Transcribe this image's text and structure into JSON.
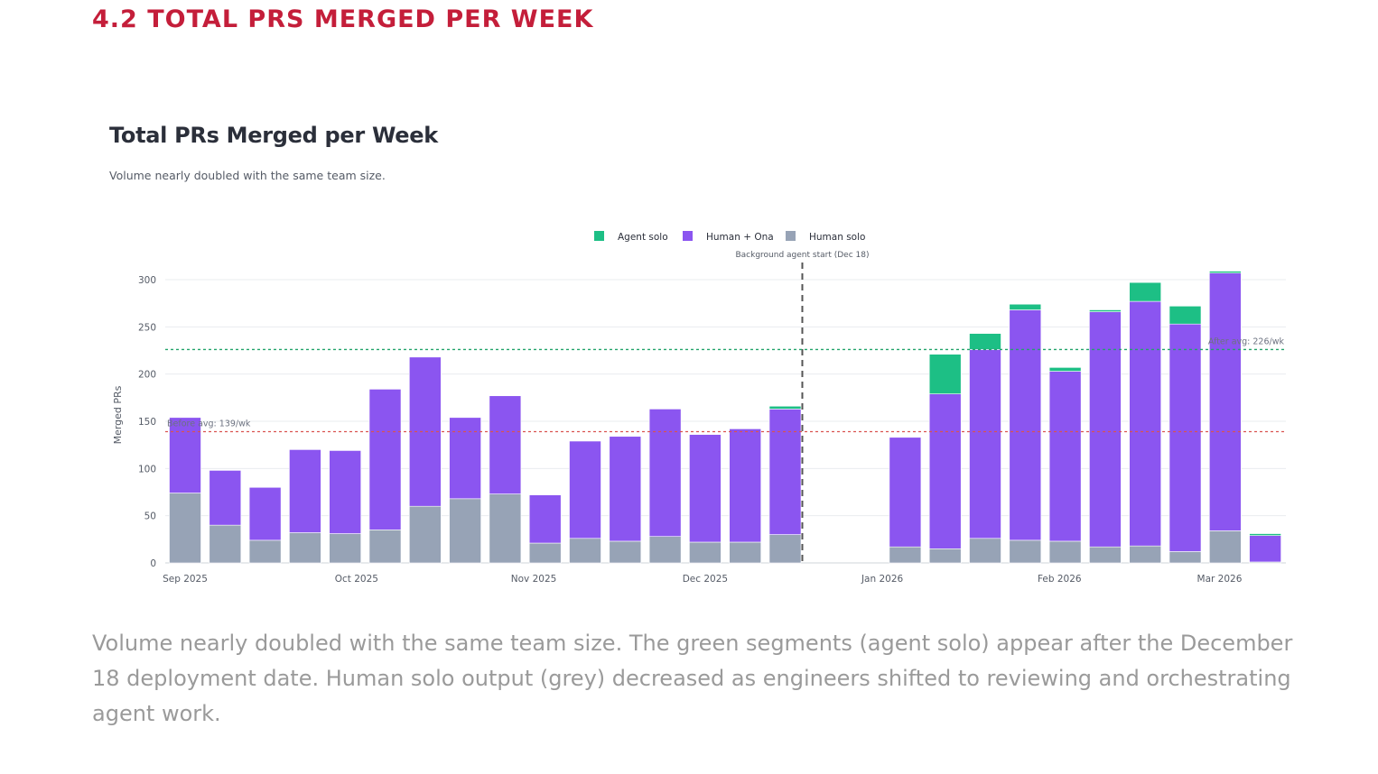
{
  "section": {
    "heading": "4.2 TOTAL PRS MERGED PER WEEK"
  },
  "caption": "Volume nearly doubled with the same team size. The green segments (agent solo) appear after the December 18 deployment date. Human solo output (grey) decreased as engineers shifted to reviewing and orchestrating agent work.",
  "colors": {
    "agent_solo": "#1dbf85",
    "human_ona": "#8b55f0",
    "human_solo": "#97a3b6",
    "before_avg_line": "#d9534f",
    "after_avg_line": "#22a36a",
    "grid": "#e9ecef",
    "axis_text": "#555b66"
  },
  "chart_data": {
    "type": "bar",
    "stacked": true,
    "title": "Total PRs Merged per Week",
    "subtitle": "Volume nearly doubled with the same team size.",
    "ylabel": "Merged PRs",
    "xlabel": "",
    "ylim": [
      0,
      300
    ],
    "yticks": [
      0,
      50,
      100,
      150,
      200,
      250,
      300
    ],
    "grid": true,
    "legend_position": "top-center",
    "x": [
      "2025-09-01",
      "2025-09-08",
      "2025-09-15",
      "2025-09-22",
      "2025-09-29",
      "2025-10-06",
      "2025-10-13",
      "2025-10-20",
      "2025-10-27",
      "2025-11-03",
      "2025-11-10",
      "2025-11-17",
      "2025-11-24",
      "2025-12-01",
      "2025-12-08",
      "2025-12-15",
      "2025-12-22",
      "2025-12-29",
      "2026-01-05",
      "2026-01-12",
      "2026-01-19",
      "2026-01-26",
      "2026-02-02",
      "2026-02-09",
      "2026-02-16",
      "2026-02-23",
      "2026-03-02",
      "2026-03-09"
    ],
    "x_ticks": [
      {
        "x": "2025-09-01",
        "label": "Sep 2025"
      },
      {
        "x": "2025-10-01",
        "label": "Oct 2025"
      },
      {
        "x": "2025-11-01",
        "label": "Nov 2025"
      },
      {
        "x": "2025-12-01",
        "label": "Dec 2025"
      },
      {
        "x": "2026-01-01",
        "label": "Jan 2026"
      },
      {
        "x": "2026-02-01",
        "label": "Feb 2026"
      },
      {
        "x": "2026-03-01",
        "label": "Mar 2026"
      }
    ],
    "series": [
      {
        "name": "Human solo",
        "color_key": "human_solo",
        "values": [
          74,
          40,
          24,
          32,
          31,
          35,
          60,
          68,
          73,
          21,
          26,
          23,
          28,
          22,
          22,
          30,
          0,
          0,
          17,
          15,
          26,
          24,
          23,
          17,
          18,
          12,
          34,
          1
        ]
      },
      {
        "name": "Human + Ona",
        "color_key": "human_ona",
        "values": [
          80,
          58,
          56,
          88,
          88,
          149,
          158,
          86,
          104,
          51,
          103,
          111,
          135,
          114,
          120,
          133,
          0,
          0,
          116,
          164,
          200,
          244,
          180,
          249,
          259,
          241,
          273,
          28
        ]
      },
      {
        "name": "Agent solo",
        "color_key": "agent_solo",
        "values": [
          0,
          0,
          0,
          0,
          0,
          0,
          0,
          0,
          0,
          0,
          0,
          0,
          0,
          0,
          0,
          3,
          0,
          0,
          0,
          42,
          17,
          6,
          4,
          2,
          20,
          19,
          2,
          2
        ]
      }
    ],
    "legend_order": [
      "Agent solo",
      "Human + Ona",
      "Human solo"
    ],
    "annotations": [
      {
        "type": "vline",
        "x": "2025-12-18",
        "label": "Background agent start (Dec 18)",
        "style": "dashed"
      },
      {
        "type": "hline",
        "y": 139,
        "label": "Before avg: 139/wk",
        "color_key": "before_avg_line",
        "style": "dotted"
      },
      {
        "type": "hline",
        "y": 226,
        "label": "After avg: 226/wk",
        "color_key": "after_avg_line",
        "style": "dotted"
      }
    ]
  }
}
